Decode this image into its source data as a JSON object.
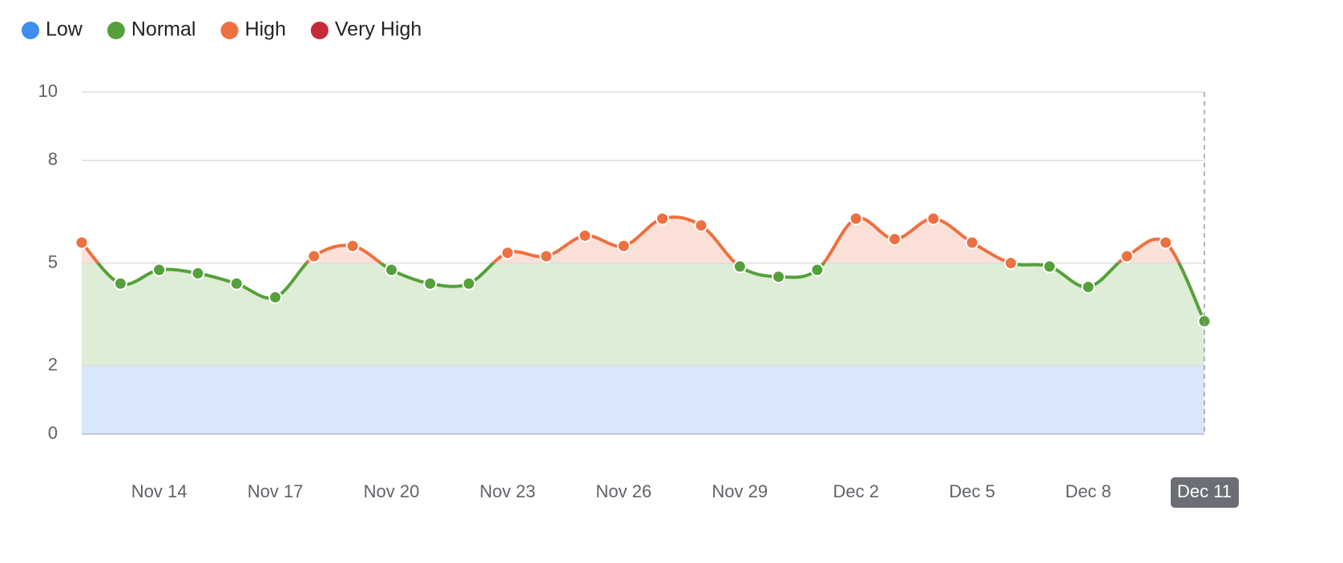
{
  "chart_data": {
    "type": "line",
    "bands": [
      {
        "name": "Low",
        "range": [
          0,
          2
        ],
        "color": "#3d8ef0",
        "fill": "#d8e7fb"
      },
      {
        "name": "Normal",
        "range": [
          2,
          5
        ],
        "color": "#55a03a",
        "fill": "#deedd6"
      },
      {
        "name": "High",
        "range": [
          5,
          8
        ],
        "color": "#ee7040",
        "fill": "#fbe0d7"
      },
      {
        "name": "Very High",
        "range": [
          8,
          10
        ],
        "color": "#c62a3a",
        "fill": "#f6d3d6"
      }
    ],
    "categories": [
      null,
      null,
      "Nov 14",
      null,
      null,
      "Nov 17",
      null,
      null,
      "Nov 20",
      null,
      null,
      "Nov 23",
      null,
      null,
      "Nov 26",
      null,
      null,
      "Nov 29",
      null,
      null,
      "Dec 2",
      null,
      null,
      "Dec 5",
      null,
      null,
      "Dec 8",
      null,
      null,
      "Dec 11"
    ],
    "values": [
      5.6,
      4.4,
      4.8,
      4.7,
      4.4,
      4.0,
      5.2,
      5.5,
      4.8,
      4.4,
      4.4,
      5.3,
      5.2,
      5.8,
      5.5,
      6.3,
      6.1,
      4.9,
      4.6,
      4.8,
      6.3,
      5.7,
      6.3,
      5.6,
      5.0,
      4.9,
      4.3,
      5.2,
      5.6,
      3.3
    ],
    "highlighted_category": 29,
    "ylim": [
      0,
      10
    ],
    "yticks": [
      0,
      2,
      5,
      8,
      10
    ],
    "grid": true,
    "legend": "top-left"
  }
}
